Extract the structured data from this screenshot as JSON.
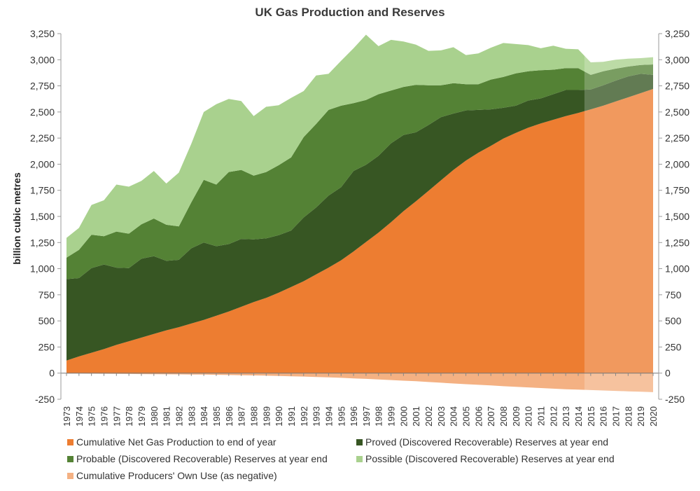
{
  "chart_data": {
    "type": "area",
    "title": "UK Gas Production and Reserves",
    "ylabel": "billion cubic metres",
    "xlabel": "",
    "ylim": [
      -250,
      3250
    ],
    "yticks": [
      -250,
      0,
      250,
      500,
      750,
      1000,
      1250,
      1500,
      1750,
      2000,
      2250,
      2500,
      2750,
      3000,
      3250
    ],
    "ytick_labels": [
      "-250",
      "0",
      "250",
      "500",
      "750",
      "1,000",
      "1,250",
      "1,500",
      "1,750",
      "2,000",
      "2,250",
      "2,500",
      "2,750",
      "3,000",
      "3,250"
    ],
    "categories": [
      "1973",
      "1974",
      "1975",
      "1976",
      "1977",
      "1978",
      "1979",
      "1980",
      "1981",
      "1982",
      "1983",
      "1984",
      "1985",
      "1986",
      "1987",
      "1988",
      "1989",
      "1990",
      "1991",
      "1992",
      "1993",
      "1994",
      "1995",
      "1996",
      "1997",
      "1998",
      "1999",
      "2000",
      "2001",
      "2002",
      "2003",
      "2004",
      "2005",
      "2006",
      "2007",
      "2008",
      "2009",
      "2010",
      "2011",
      "2012",
      "2013",
      "2014",
      "2015",
      "2016",
      "2017",
      "2018",
      "2019",
      "2020"
    ],
    "stacked": true,
    "projection_start": "2015",
    "series": [
      {
        "name": "Cumulative Net Gas Production to end of year",
        "color": "#ED7D31",
        "values": [
          120,
          160,
          195,
          230,
          270,
          305,
          340,
          375,
          410,
          440,
          475,
          510,
          550,
          590,
          635,
          680,
          720,
          770,
          825,
          880,
          945,
          1010,
          1080,
          1165,
          1255,
          1345,
          1445,
          1550,
          1645,
          1745,
          1845,
          1945,
          2035,
          2110,
          2175,
          2245,
          2300,
          2350,
          2390,
          2425,
          2460,
          2490,
          2525,
          2560,
          2600,
          2640,
          2680,
          2720
        ]
      },
      {
        "name": "Proved (Discovered Recoverable) Reserves at year end",
        "color": "#375623",
        "values": [
          780,
          750,
          810,
          810,
          740,
          700,
          755,
          745,
          665,
          645,
          720,
          740,
          665,
          645,
          650,
          600,
          570,
          550,
          540,
          610,
          640,
          690,
          700,
          770,
          740,
          735,
          755,
          730,
          660,
          630,
          605,
          540,
          480,
          410,
          350,
          295,
          260,
          260,
          240,
          245,
          250,
          220,
          190,
          195,
          200,
          200,
          185,
          135
        ]
      },
      {
        "name": "Probable (Discovered Recoverable) Reserves at year end",
        "color": "#548235",
        "values": [
          205,
          270,
          320,
          270,
          345,
          330,
          330,
          360,
          345,
          320,
          440,
          600,
          590,
          690,
          660,
          610,
          635,
          670,
          700,
          770,
          800,
          820,
          780,
          650,
          620,
          590,
          505,
          460,
          455,
          380,
          305,
          290,
          250,
          245,
          285,
          295,
          310,
          280,
          270,
          235,
          210,
          210,
          140,
          135,
          115,
          95,
          85,
          100
        ]
      },
      {
        "name": "Possible (Discovered Recoverable) Reserves at year end",
        "color": "#A9D18E",
        "values": [
          190,
          210,
          285,
          345,
          450,
          450,
          415,
          455,
          395,
          515,
          560,
          650,
          770,
          700,
          660,
          570,
          625,
          575,
          570,
          440,
          465,
          345,
          430,
          525,
          625,
          460,
          485,
          435,
          385,
          330,
          335,
          345,
          280,
          295,
          305,
          325,
          280,
          250,
          210,
          230,
          185,
          180,
          120,
          90,
          85,
          75,
          65,
          70
        ]
      },
      {
        "name": "Cumulative Producers' Own Use (as negative)",
        "color": "#F4B183",
        "values": [
          -3,
          -4,
          -5,
          -6,
          -7,
          -8,
          -9,
          -10,
          -11,
          -12,
          -13,
          -14,
          -16,
          -18,
          -20,
          -22,
          -24,
          -27,
          -30,
          -33,
          -37,
          -41,
          -45,
          -50,
          -55,
          -60,
          -66,
          -72,
          -78,
          -85,
          -92,
          -99,
          -106,
          -112,
          -118,
          -125,
          -131,
          -137,
          -143,
          -149,
          -154,
          -158,
          -162,
          -166,
          -170,
          -174,
          -178,
          -182
        ]
      }
    ],
    "legend": [
      "Cumulative Net Gas Production to end of year",
      "Proved (Discovered Recoverable) Reserves at year end",
      "Probable (Discovered Recoverable) Reserves at year end",
      "Possible (Discovered Recoverable) Reserves at year end",
      "Cumulative Producers' Own Use (as negative)"
    ]
  }
}
